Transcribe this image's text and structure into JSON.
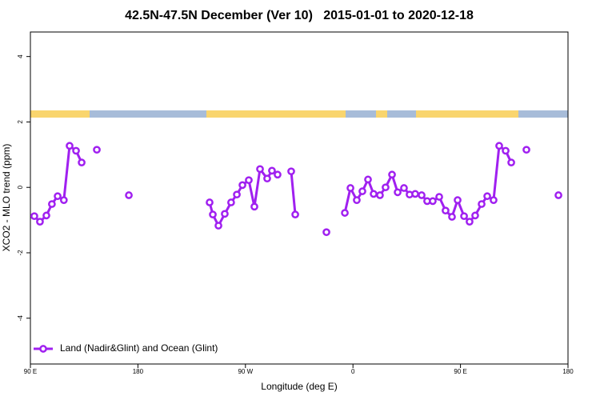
{
  "chart_data": {
    "type": "line",
    "title": "42.5N-47.5N December (Ver 10)   2015-01-01 to 2020-12-18",
    "x_label": "Longitude (deg E)",
    "y_label": "XCO2 - MLO trend (ppm)",
    "xlim": [
      90,
      540
    ],
    "ylim": [
      -5.4,
      4.75
    ],
    "xticks": [
      {
        "value": 90,
        "label": "90 E"
      },
      180,
      {
        "value": 270,
        "label": "90 W"
      },
      {
        "value": 360,
        "label": "0"
      },
      {
        "value": 450,
        "label": "90 E"
      },
      {
        "value": 540,
        "label": "180"
      }
    ],
    "yticks": [
      -4,
      -2,
      0,
      2,
      4
    ],
    "legend_position": "bottom-left",
    "x": [
      93.3,
      98,
      103.4,
      108,
      112.8,
      118,
      122.8,
      128.2,
      132.9,
      null,
      145.6,
      null,
      172.4,
      null,
      240,
      242.7,
      247.4,
      252.7,
      258,
      262.8,
      267.5,
      272.8,
      277.5,
      282.2,
      288.2,
      292.2,
      296.9,
      null,
      308.3,
      311.7,
      null,
      337.8,
      null,
      353.2,
      357.9,
      363.2,
      367.9,
      372.6,
      377.3,
      382.6,
      387.3,
      392.7,
      397.4,
      402.7,
      407.4,
      412.1,
      417.5,
      422.1,
      426.8,
      432.2,
      437.5,
      442.9,
      447.6,
      453,
      457.6,
      462.3,
      467.7,
      472.4,
      477.7,
      482.4,
      487.8,
      492.5,
      null,
      505.2,
      null,
      532
    ],
    "series": [
      {
        "name": "Land (Nadir&Glint) and Ocean (Glint)",
        "color": "#a020f0",
        "values": [
          -0.88,
          -1.05,
          -0.86,
          -0.51,
          -0.27,
          -0.39,
          1.27,
          1.12,
          0.76,
          null,
          1.15,
          null,
          -0.24,
          null,
          -0.46,
          -0.83,
          -1.17,
          -0.81,
          -0.46,
          -0.22,
          0.07,
          0.22,
          -0.59,
          0.56,
          0.27,
          0.51,
          0.39,
          null,
          0.49,
          -0.83,
          null,
          -1.37,
          null,
          -0.78,
          -0.02,
          -0.39,
          -0.12,
          0.24,
          -0.2,
          -0.24,
          0.0,
          0.39,
          -0.15,
          -0.02,
          -0.22,
          -0.2,
          -0.24,
          -0.42,
          -0.42,
          -0.29,
          -0.71,
          -0.9,
          -0.39,
          -0.88,
          -1.05,
          -0.86,
          -0.51,
          -0.27,
          -0.39,
          1.27,
          1.12,
          0.76,
          null,
          1.15,
          null,
          -0.24
        ]
      }
    ]
  }
}
